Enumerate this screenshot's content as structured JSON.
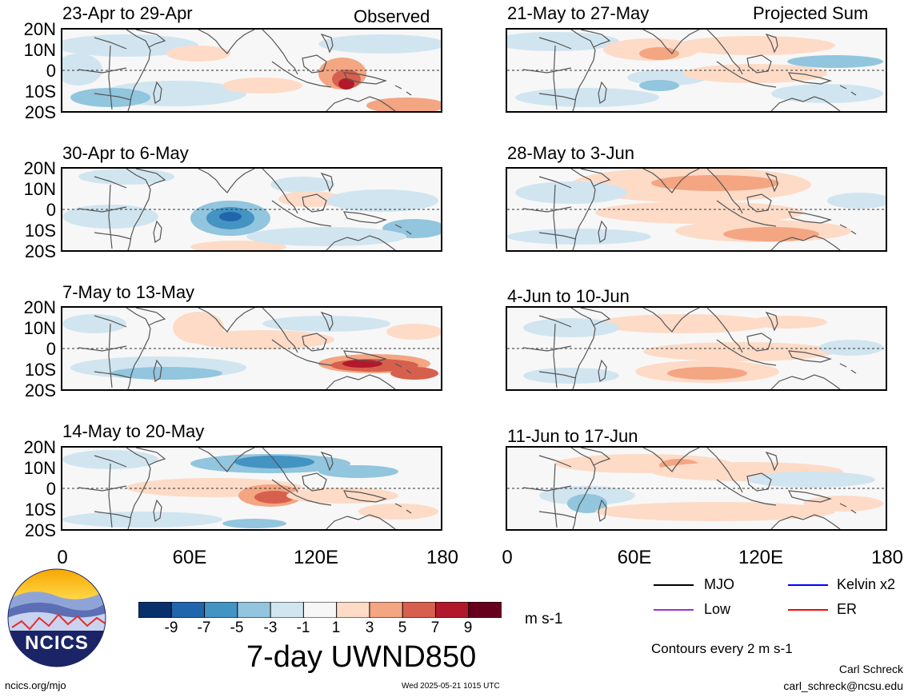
{
  "panels": [
    {
      "id": "p1",
      "title": "23-Apr to 29-Apr",
      "tag": "Observed"
    },
    {
      "id": "p2",
      "title": "21-May to 27-May",
      "tag": "Projected Sum"
    },
    {
      "id": "p3",
      "title": "30-Apr to 6-May",
      "tag": ""
    },
    {
      "id": "p4",
      "title": "28-May to 3-Jun",
      "tag": ""
    },
    {
      "id": "p5",
      "title": "7-May to 13-May",
      "tag": ""
    },
    {
      "id": "p6",
      "title": "4-Jun to 10-Jun",
      "tag": ""
    },
    {
      "id": "p7",
      "title": "14-May to 20-May",
      "tag": ""
    },
    {
      "id": "p8",
      "title": "11-Jun to 17-Jun",
      "tag": ""
    }
  ],
  "lat_labels": [
    "20N",
    "10N",
    "0",
    "10S",
    "20S"
  ],
  "lon_labels": [
    "0",
    "60E",
    "120E",
    "180"
  ],
  "colorbar": {
    "labels": [
      "-9",
      "-7",
      "-5",
      "-3",
      "-1",
      "1",
      "3",
      "5",
      "7",
      "9"
    ],
    "colors": [
      "#08306b",
      "#2166ac",
      "#4393c3",
      "#92c5de",
      "#d1e5f0",
      "#f7f7f7",
      "#fddbc7",
      "#f4a582",
      "#d6604d",
      "#b2182b",
      "#67001f"
    ],
    "units": "m s-1",
    "title": "7-day UWND850"
  },
  "legend": {
    "items": [
      {
        "label": "MJO",
        "color": "#000000"
      },
      {
        "label": "Kelvin x2",
        "color": "#0000ff"
      },
      {
        "label": "Low",
        "color": "#9933cc"
      },
      {
        "label": "ER",
        "color": "#ff0000"
      }
    ],
    "contours": "Contours every 2 m s-1"
  },
  "logo": {
    "text": "NCICS"
  },
  "footer": {
    "url": "ncics.org/mjo",
    "timestamp": "Wed 2025-05-21 1015 UTC",
    "author": "Carl Schreck",
    "email": "carl_schreck@ncsu.edu"
  }
}
